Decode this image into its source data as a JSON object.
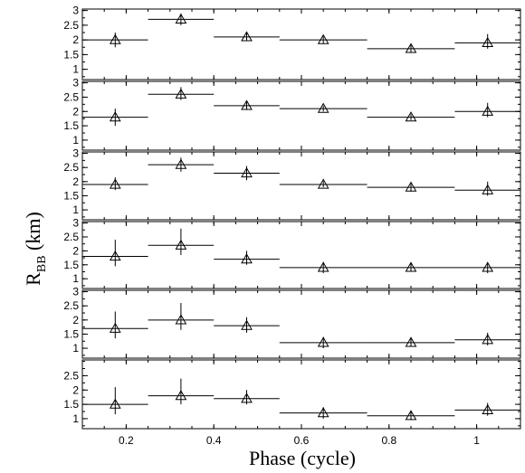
{
  "chart_data": {
    "type": "scatter",
    "xlabel": "Phase (cycle)",
    "ylabel_main": "R",
    "ylabel_sub": "BB",
    "ylabel_unit": " (km)",
    "xlim": [
      0.1,
      1.1
    ],
    "xticks": [
      0.2,
      0.4,
      0.6,
      0.8,
      1
    ],
    "xtick_labels": [
      "0.2",
      "0.4",
      "0.6",
      "0.8",
      "1"
    ],
    "panels": [
      {
        "ylim": [
          0.65,
          3.05
        ],
        "yticks": [
          1,
          1.5,
          2,
          2.5,
          3
        ],
        "ytick_labels": [
          "1",
          "1.5",
          "2",
          "2.5",
          "3"
        ],
        "x": [
          0.175,
          0.325,
          0.475,
          0.65,
          0.85,
          1.025
        ],
        "xerr_lo": [
          0.075,
          0.075,
          0.075,
          0.1,
          0.1,
          0.075
        ],
        "xerr_hi": [
          0.075,
          0.075,
          0.075,
          0.1,
          0.1,
          0.075
        ],
        "y": [
          2.0,
          2.7,
          2.1,
          2.0,
          1.7,
          1.9
        ],
        "yerr_lo": [
          0.25,
          0.2,
          0.12,
          0.12,
          0.12,
          0.2
        ],
        "yerr_hi": [
          0.25,
          0.2,
          0.15,
          0.12,
          0.12,
          0.3
        ]
      },
      {
        "ylim": [
          0.65,
          3.05
        ],
        "yticks": [
          1,
          1.5,
          2,
          2.5,
          3
        ],
        "ytick_labels": [
          "1",
          "1.5",
          "2",
          "2.5",
          "3"
        ],
        "x": [
          0.175,
          0.325,
          0.475,
          0.65,
          0.85,
          1.025
        ],
        "xerr_lo": [
          0.075,
          0.075,
          0.075,
          0.1,
          0.1,
          0.075
        ],
        "xerr_hi": [
          0.075,
          0.075,
          0.075,
          0.1,
          0.1,
          0.075
        ],
        "y": [
          1.8,
          2.6,
          2.2,
          2.1,
          1.8,
          2.0
        ],
        "yerr_lo": [
          0.3,
          0.2,
          0.15,
          0.1,
          0.1,
          0.2
        ],
        "yerr_hi": [
          0.3,
          0.25,
          0.15,
          0.1,
          0.1,
          0.3
        ]
      },
      {
        "ylim": [
          0.65,
          3.05
        ],
        "yticks": [
          1,
          1.5,
          2,
          2.5,
          3
        ],
        "ytick_labels": [
          "1",
          "1.5",
          "2",
          "2.5",
          "3"
        ],
        "x": [
          0.175,
          0.325,
          0.475,
          0.65,
          0.85,
          1.025
        ],
        "xerr_lo": [
          0.075,
          0.075,
          0.075,
          0.1,
          0.1,
          0.075
        ],
        "xerr_hi": [
          0.075,
          0.075,
          0.075,
          0.1,
          0.1,
          0.075
        ],
        "y": [
          1.9,
          2.6,
          2.3,
          1.9,
          1.8,
          1.7
        ],
        "yerr_lo": [
          0.2,
          0.25,
          0.25,
          0.1,
          0.15,
          0.2
        ],
        "yerr_hi": [
          0.25,
          0.25,
          0.25,
          0.12,
          0.12,
          0.3
        ]
      },
      {
        "ylim": [
          0.65,
          3.05
        ],
        "yticks": [
          1,
          1.5,
          2,
          2.5,
          3
        ],
        "ytick_labels": [
          "1",
          "1.5",
          "2",
          "2.5",
          "3"
        ],
        "x": [
          0.175,
          0.325,
          0.475,
          0.65,
          0.85,
          1.025
        ],
        "xerr_lo": [
          0.075,
          0.075,
          0.075,
          0.1,
          0.1,
          0.075
        ],
        "xerr_hi": [
          0.075,
          0.075,
          0.075,
          0.1,
          0.1,
          0.075
        ],
        "y": [
          1.8,
          2.2,
          1.7,
          1.4,
          1.4,
          1.4
        ],
        "yerr_lo": [
          0.35,
          0.35,
          0.2,
          0.2,
          0.15,
          0.2
        ],
        "yerr_hi": [
          0.6,
          0.6,
          0.3,
          0.2,
          0.15,
          0.2
        ]
      },
      {
        "ylim": [
          0.65,
          3.05
        ],
        "yticks": [
          1,
          1.5,
          2,
          2.5,
          3
        ],
        "ytick_labels": [
          "1",
          "1.5",
          "2",
          "2.5",
          "3"
        ],
        "x": [
          0.175,
          0.325,
          0.475,
          0.65,
          0.85,
          1.025
        ],
        "xerr_lo": [
          0.075,
          0.075,
          0.075,
          0.1,
          0.1,
          0.075
        ],
        "xerr_hi": [
          0.075,
          0.075,
          0.075,
          0.1,
          0.1,
          0.075
        ],
        "y": [
          1.7,
          2.0,
          1.8,
          1.2,
          1.2,
          1.3
        ],
        "yerr_lo": [
          0.35,
          0.35,
          0.25,
          0.2,
          0.15,
          0.2
        ],
        "yerr_hi": [
          0.6,
          0.6,
          0.3,
          0.2,
          0.15,
          0.25
        ]
      },
      {
        "ylim": [
          0.65,
          3.05
        ],
        "yticks": [
          1,
          1.5,
          2,
          2.5
        ],
        "ytick_labels": [
          "1",
          "1.5",
          "2",
          "2.5"
        ],
        "x": [
          0.175,
          0.325,
          0.475,
          0.65,
          0.85,
          1.025
        ],
        "xerr_lo": [
          0.075,
          0.075,
          0.075,
          0.1,
          0.1,
          0.075
        ],
        "xerr_hi": [
          0.075,
          0.075,
          0.075,
          0.1,
          0.1,
          0.075
        ],
        "y": [
          1.5,
          1.8,
          1.7,
          1.2,
          1.1,
          1.3
        ],
        "yerr_lo": [
          0.35,
          0.3,
          0.2,
          0.2,
          0.15,
          0.2
        ],
        "yerr_hi": [
          0.6,
          0.6,
          0.3,
          0.2,
          0.15,
          0.25
        ]
      }
    ]
  }
}
